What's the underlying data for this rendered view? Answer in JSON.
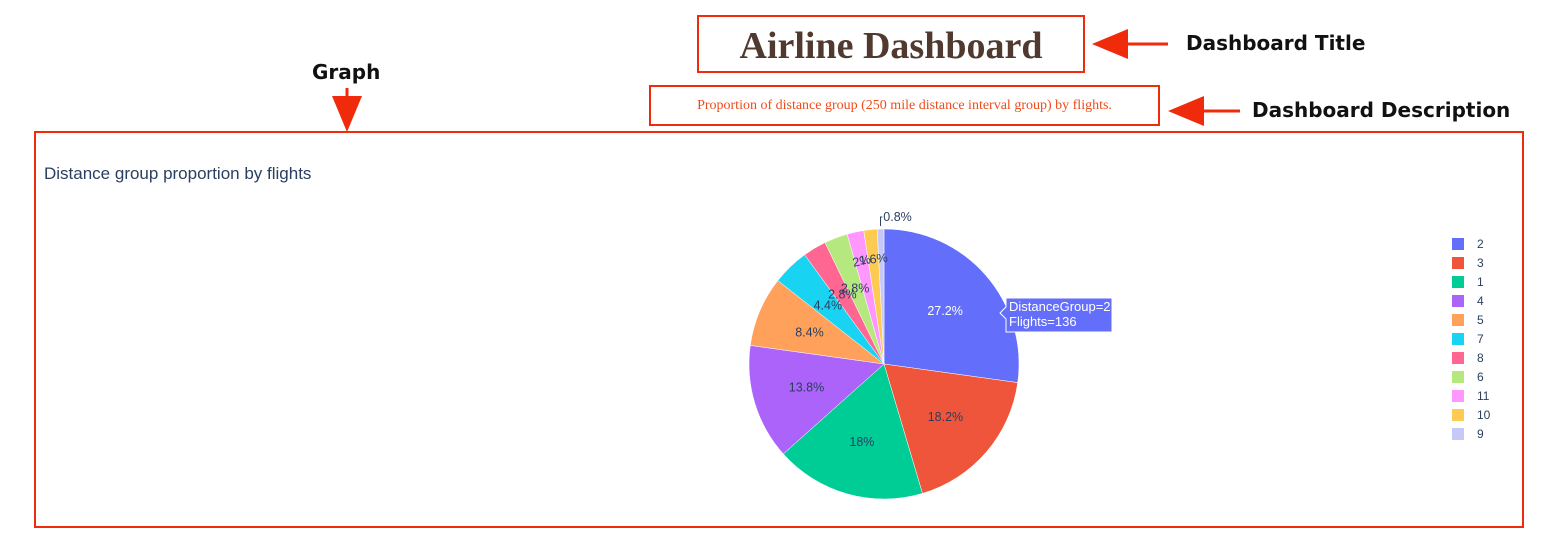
{
  "dashboard": {
    "title": "Airline Dashboard",
    "description": "Proportion of distance group (250 mile distance interval group) by flights."
  },
  "callouts": {
    "title_label": "Dashboard Title",
    "description_label": "Dashboard Description",
    "graph_label": "Graph"
  },
  "chart_data": {
    "type": "pie",
    "title": "Distance group proportion by flights",
    "labels": [
      "2",
      "3",
      "1",
      "4",
      "5",
      "7",
      "8",
      "6",
      "11",
      "10",
      "9"
    ],
    "values": [
      136,
      91,
      90,
      69,
      42,
      22,
      14,
      14,
      10,
      8,
      4
    ],
    "percent_labels": [
      "27.2%",
      "18.2%",
      "18%",
      "13.8%",
      "8.4%",
      "4.4%",
      "2.8%",
      "2.8%",
      "2%",
      "1.6%",
      "0.8%"
    ],
    "colors": [
      "#636efa",
      "#ef553b",
      "#00cc96",
      "#ab63fa",
      "#ffa15a",
      "#19d3f3",
      "#ff6692",
      "#b6e880",
      "#ff97ff",
      "#fecb52",
      "#c6c9f8"
    ],
    "legend_position": "right",
    "hover": {
      "line1": "DistanceGroup=2",
      "line2": "Flights=136"
    }
  }
}
